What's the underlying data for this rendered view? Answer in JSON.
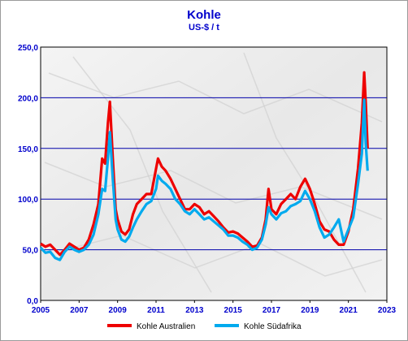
{
  "chart_data": {
    "type": "line",
    "title": "Kohle",
    "subtitle": "US-$ / t",
    "xlabel": "",
    "ylabel": "",
    "xlim": [
      2005,
      2023
    ],
    "ylim": [
      0,
      250
    ],
    "x_ticks": [
      "2005",
      "2007",
      "2009",
      "2011",
      "2013",
      "2015",
      "2017",
      "2019",
      "2021",
      "2023"
    ],
    "y_ticks": [
      "0,0",
      "50,0",
      "100,0",
      "150,0",
      "200,0",
      "250,0"
    ],
    "grid": true,
    "legend_position": "bottom",
    "series": [
      {
        "name": "Kohle Australien",
        "color": "#ee0000",
        "points": [
          [
            2005.0,
            56
          ],
          [
            2005.25,
            53
          ],
          [
            2005.5,
            55
          ],
          [
            2005.75,
            50
          ],
          [
            2006.0,
            45
          ],
          [
            2006.25,
            50
          ],
          [
            2006.5,
            56
          ],
          [
            2006.75,
            53
          ],
          [
            2007.0,
            50
          ],
          [
            2007.25,
            52
          ],
          [
            2007.5,
            60
          ],
          [
            2007.75,
            75
          ],
          [
            2008.0,
            95
          ],
          [
            2008.2,
            140
          ],
          [
            2008.35,
            135
          ],
          [
            2008.5,
            175
          ],
          [
            2008.6,
            196
          ],
          [
            2008.75,
            140
          ],
          [
            2008.9,
            90
          ],
          [
            2009.0,
            80
          ],
          [
            2009.2,
            68
          ],
          [
            2009.4,
            65
          ],
          [
            2009.6,
            70
          ],
          [
            2009.8,
            85
          ],
          [
            2010.0,
            95
          ],
          [
            2010.25,
            100
          ],
          [
            2010.5,
            105
          ],
          [
            2010.75,
            105
          ],
          [
            2011.0,
            130
          ],
          [
            2011.1,
            140
          ],
          [
            2011.3,
            132
          ],
          [
            2011.5,
            128
          ],
          [
            2011.75,
            120
          ],
          [
            2012.0,
            110
          ],
          [
            2012.25,
            100
          ],
          [
            2012.5,
            90
          ],
          [
            2012.75,
            90
          ],
          [
            2013.0,
            95
          ],
          [
            2013.25,
            92
          ],
          [
            2013.5,
            85
          ],
          [
            2013.75,
            88
          ],
          [
            2014.0,
            83
          ],
          [
            2014.25,
            78
          ],
          [
            2014.5,
            72
          ],
          [
            2014.75,
            67
          ],
          [
            2015.0,
            68
          ],
          [
            2015.25,
            66
          ],
          [
            2015.5,
            62
          ],
          [
            2015.75,
            58
          ],
          [
            2016.0,
            53
          ],
          [
            2016.25,
            54
          ],
          [
            2016.5,
            62
          ],
          [
            2016.7,
            80
          ],
          [
            2016.85,
            110
          ],
          [
            2017.0,
            90
          ],
          [
            2017.25,
            85
          ],
          [
            2017.5,
            95
          ],
          [
            2017.75,
            100
          ],
          [
            2018.0,
            105
          ],
          [
            2018.25,
            100
          ],
          [
            2018.5,
            112
          ],
          [
            2018.75,
            120
          ],
          [
            2019.0,
            110
          ],
          [
            2019.25,
            95
          ],
          [
            2019.5,
            78
          ],
          [
            2019.75,
            70
          ],
          [
            2020.0,
            68
          ],
          [
            2020.25,
            60
          ],
          [
            2020.5,
            55
          ],
          [
            2020.75,
            55
          ],
          [
            2021.0,
            68
          ],
          [
            2021.25,
            90
          ],
          [
            2021.5,
            130
          ],
          [
            2021.7,
            175
          ],
          [
            2021.82,
            225
          ],
          [
            2021.9,
            195
          ],
          [
            2022.0,
            150
          ]
        ]
      },
      {
        "name": "Kohle Südafrika",
        "color": "#00aaee",
        "points": [
          [
            2005.0,
            52
          ],
          [
            2005.25,
            47
          ],
          [
            2005.5,
            48
          ],
          [
            2005.75,
            42
          ],
          [
            2006.0,
            40
          ],
          [
            2006.25,
            48
          ],
          [
            2006.5,
            53
          ],
          [
            2006.75,
            50
          ],
          [
            2007.0,
            48
          ],
          [
            2007.25,
            50
          ],
          [
            2007.5,
            55
          ],
          [
            2007.75,
            65
          ],
          [
            2008.0,
            85
          ],
          [
            2008.2,
            110
          ],
          [
            2008.35,
            108
          ],
          [
            2008.5,
            140
          ],
          [
            2008.6,
            166
          ],
          [
            2008.75,
            120
          ],
          [
            2008.9,
            80
          ],
          [
            2009.0,
            70
          ],
          [
            2009.2,
            60
          ],
          [
            2009.4,
            58
          ],
          [
            2009.6,
            63
          ],
          [
            2009.8,
            72
          ],
          [
            2010.0,
            80
          ],
          [
            2010.25,
            88
          ],
          [
            2010.5,
            95
          ],
          [
            2010.75,
            98
          ],
          [
            2011.0,
            110
          ],
          [
            2011.1,
            123
          ],
          [
            2011.3,
            118
          ],
          [
            2011.5,
            115
          ],
          [
            2011.75,
            110
          ],
          [
            2012.0,
            100
          ],
          [
            2012.25,
            95
          ],
          [
            2012.5,
            88
          ],
          [
            2012.75,
            85
          ],
          [
            2013.0,
            90
          ],
          [
            2013.25,
            85
          ],
          [
            2013.5,
            80
          ],
          [
            2013.75,
            82
          ],
          [
            2014.0,
            78
          ],
          [
            2014.25,
            74
          ],
          [
            2014.5,
            70
          ],
          [
            2014.75,
            64
          ],
          [
            2015.0,
            64
          ],
          [
            2015.25,
            62
          ],
          [
            2015.5,
            58
          ],
          [
            2015.75,
            55
          ],
          [
            2016.0,
            50
          ],
          [
            2016.25,
            52
          ],
          [
            2016.5,
            60
          ],
          [
            2016.7,
            75
          ],
          [
            2016.85,
            92
          ],
          [
            2017.0,
            85
          ],
          [
            2017.25,
            80
          ],
          [
            2017.5,
            86
          ],
          [
            2017.75,
            88
          ],
          [
            2018.0,
            93
          ],
          [
            2018.25,
            95
          ],
          [
            2018.5,
            98
          ],
          [
            2018.75,
            108
          ],
          [
            2019.0,
            100
          ],
          [
            2019.25,
            88
          ],
          [
            2019.5,
            72
          ],
          [
            2019.75,
            62
          ],
          [
            2020.0,
            65
          ],
          [
            2020.25,
            72
          ],
          [
            2020.5,
            80
          ],
          [
            2020.75,
            58
          ],
          [
            2021.0,
            70
          ],
          [
            2021.25,
            82
          ],
          [
            2021.5,
            115
          ],
          [
            2021.7,
            145
          ],
          [
            2021.82,
            198
          ],
          [
            2021.9,
            155
          ],
          [
            2022.0,
            128
          ]
        ]
      }
    ]
  }
}
